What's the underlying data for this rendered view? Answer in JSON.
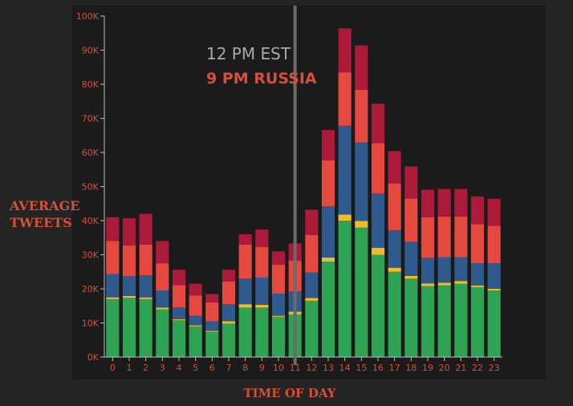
{
  "chart_data": {
    "type": "bar",
    "stacked": true,
    "xlabel": "TIME OF DAY",
    "ylabel_lines": [
      "AVERAGE",
      "TWEETS"
    ],
    "categories": [
      "0",
      "1",
      "2",
      "3",
      "4",
      "5",
      "6",
      "7",
      "8",
      "9",
      "10",
      "11",
      "12",
      "13",
      "14",
      "15",
      "16",
      "17",
      "18",
      "19",
      "20",
      "21",
      "22",
      "23"
    ],
    "ylim": [
      0,
      100000
    ],
    "yticks": [
      0,
      10000,
      20000,
      30000,
      40000,
      50000,
      60000,
      70000,
      80000,
      90000,
      100000
    ],
    "ytick_labels": [
      "0K",
      "10K",
      "20K",
      "30K",
      "40K",
      "50K",
      "60K",
      "70K",
      "80K",
      "90K",
      "100K"
    ],
    "highlight_category": "11",
    "annotation": {
      "line1": "12 PM EST",
      "line2": "9 PM RUSSIA"
    },
    "series": [
      {
        "color": "#2ea353",
        "values": [
          17000,
          17400,
          17000,
          14000,
          10800,
          9000,
          7400,
          9800,
          14500,
          14500,
          11800,
          12500,
          16500,
          28000,
          40000,
          38000,
          30000,
          25000,
          23000,
          20800,
          21000,
          21500,
          20500,
          19500
        ]
      },
      {
        "color": "#f3bc25",
        "values": [
          500,
          500,
          500,
          500,
          300,
          300,
          300,
          700,
          1000,
          800,
          300,
          800,
          800,
          1200,
          1800,
          1900,
          2000,
          1200,
          800,
          800,
          800,
          800,
          500,
          500
        ]
      },
      {
        "color": "#2f5a8e",
        "values": [
          6800,
          5800,
          6500,
          5000,
          3500,
          2800,
          2800,
          5000,
          7500,
          8000,
          6500,
          6000,
          7500,
          15000,
          26000,
          23000,
          16000,
          11000,
          10000,
          7500,
          7500,
          7000,
          6500,
          7500
        ]
      },
      {
        "color": "#e5483f",
        "values": [
          9700,
          9000,
          9000,
          8000,
          6500,
          5900,
          5500,
          6700,
          10000,
          9000,
          8500,
          9000,
          11000,
          13500,
          15700,
          15500,
          14700,
          13700,
          12700,
          11900,
          11900,
          11900,
          11500,
          11000
        ]
      },
      {
        "color": "#ac1a3a",
        "values": [
          7000,
          8000,
          9000,
          6500,
          4500,
          3500,
          2500,
          3400,
          3000,
          5100,
          3900,
          5000,
          7400,
          8900,
          12900,
          13000,
          11600,
          9500,
          9400,
          8100,
          8100,
          8100,
          8100,
          7900
        ]
      }
    ]
  }
}
